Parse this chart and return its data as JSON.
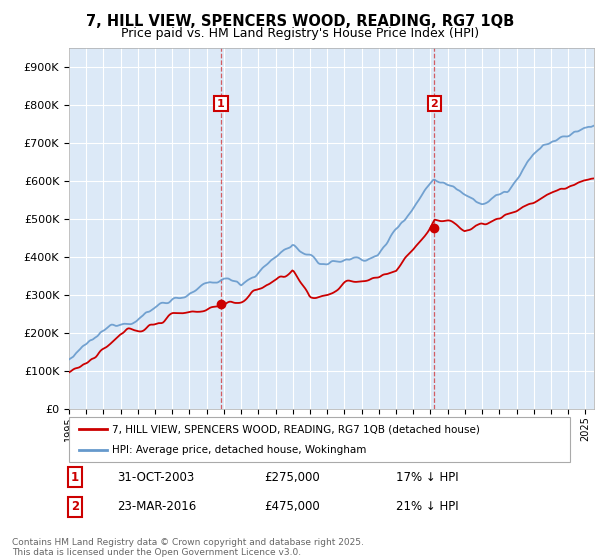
{
  "title_line1": "7, HILL VIEW, SPENCERS WOOD, READING, RG7 1QB",
  "title_line2": "Price paid vs. HM Land Registry's House Price Index (HPI)",
  "background_color": "#ffffff",
  "plot_bg_color": "#dce9f7",
  "grid_color": "#ffffff",
  "hpi_color": "#6699cc",
  "price_color": "#cc0000",
  "annotation1_date": "31-OCT-2003",
  "annotation1_price": "£275,000",
  "annotation1_text": "17% ↓ HPI",
  "annotation2_date": "23-MAR-2016",
  "annotation2_price": "£475,000",
  "annotation2_text": "21% ↓ HPI",
  "legend_label1": "7, HILL VIEW, SPENCERS WOOD, READING, RG7 1QB (detached house)",
  "legend_label2": "HPI: Average price, detached house, Wokingham",
  "footnote": "Contains HM Land Registry data © Crown copyright and database right 2025.\nThis data is licensed under the Open Government Licence v3.0.",
  "purchase1_year": 2003.83,
  "purchase1_price": 275000,
  "purchase2_year": 2016.23,
  "purchase2_price": 475000,
  "xmin": 1995,
  "xmax": 2025.5,
  "ymin": 0,
  "ymax": 950000
}
